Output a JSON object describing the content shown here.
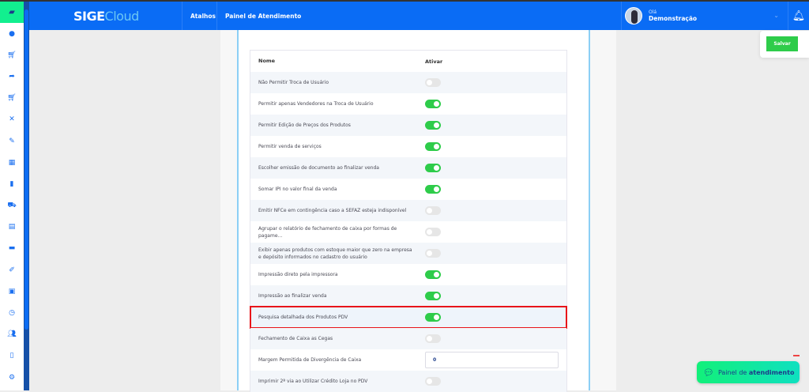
{
  "header": {
    "logo_main": "SIGE",
    "logo_accent": "Cloud",
    "nav": [
      "Atalhos",
      "Painel de Atendimento"
    ],
    "greeting": "Olá",
    "user": "Demonstração"
  },
  "sidebar": {
    "icons": [
      "chat-icon",
      "dollar-icon",
      "cart-icon",
      "share-icon",
      "cart-icon",
      "tools-icon",
      "edit-document-icon",
      "boxes-icon",
      "buildings-icon",
      "truck-icon",
      "store-icon",
      "car-icon",
      "pen-icon",
      "monitor-icon",
      "clock-icon",
      "users-icon",
      "report-icon",
      "gear-icon"
    ]
  },
  "toolbar": {
    "save_label": "Salvar"
  },
  "table": {
    "headers": {
      "name": "Nome",
      "active": "Ativar"
    },
    "rows": [
      {
        "label": "Não Permitir Troca de Usuário",
        "type": "toggle",
        "on": false
      },
      {
        "label": "Permitir apenas Vendedores na Troca de Usuário",
        "type": "toggle",
        "on": true
      },
      {
        "label": "Permitir Edição de Preços dos Produtos",
        "type": "toggle",
        "on": true
      },
      {
        "label": "Permitir venda de serviços",
        "type": "toggle",
        "on": true
      },
      {
        "label": "Escolher emissão de documento ao finalizar venda",
        "type": "toggle",
        "on": true
      },
      {
        "label": "Somar IPI no valor final da venda",
        "type": "toggle",
        "on": true
      },
      {
        "label": "Emitir NFCe em contingência caso a SEFAZ esteja indisponível",
        "type": "toggle",
        "on": false
      },
      {
        "label": "Agrupar o relatório de fechamento de caixa por formas de pagame...",
        "type": "toggle",
        "on": false
      },
      {
        "label": " Exibir apenas produtos com estoque maior que zero na empresa e depósito informados no cadastro do usuário",
        "type": "toggle",
        "on": false
      },
      {
        "label": "Impressão direto pela impressora",
        "type": "toggle",
        "on": true
      },
      {
        "label": "Impressão ao finalizar venda",
        "type": "toggle",
        "on": true
      },
      {
        "label": "Pesquisa detalhada dos Produtos PDV",
        "type": "toggle",
        "on": true,
        "highlighted": true
      },
      {
        "label": "Fechamento de Caixa as Cegas",
        "type": "toggle",
        "on": false
      },
      {
        "label": "Margem Permitida de Divergência de Caixa",
        "type": "input",
        "value": "0"
      },
      {
        "label": "Imprimir 2ª via ao Utilizar Crédito Loja no PDV",
        "type": "toggle",
        "on": false
      }
    ]
  },
  "chat_widget": {
    "prefix": "Painel de ",
    "bold": "atendimento"
  },
  "colors": {
    "header": "#0a6cf5",
    "toggle_on": "#2ecc4a",
    "highlight": "#e8141a",
    "chat_gradient_start": "#12f07a"
  }
}
